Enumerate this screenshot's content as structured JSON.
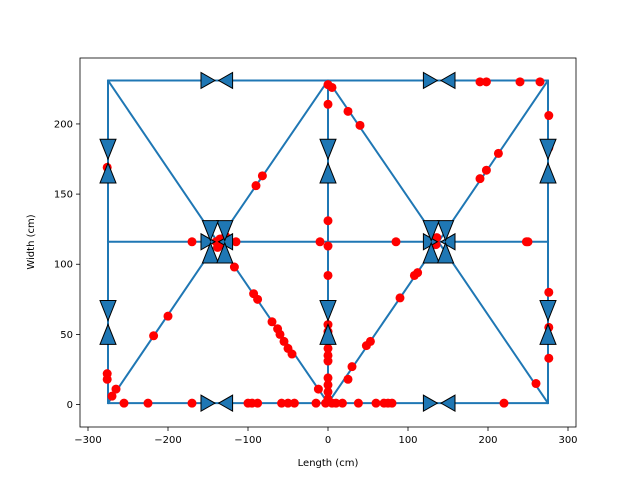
{
  "chart_data": {
    "type": "scatter",
    "title": "",
    "xlabel": "Length (cm)",
    "ylabel": "Width (cm)",
    "xlim": [
      -310,
      310
    ],
    "ylim": [
      -16,
      247
    ],
    "xticks": [
      -300,
      -200,
      -100,
      0,
      100,
      200,
      300
    ],
    "yticks": [
      0,
      50,
      100,
      150,
      200
    ],
    "grid": false,
    "legend": "none",
    "colors": {
      "line": "#1f77b4",
      "points": "#ff0000",
      "arrow_fill": "#1f77b4",
      "arrow_edge": "#000000"
    },
    "line_segments": [
      [
        [
          -275,
          1
        ],
        [
          -275,
          231
        ]
      ],
      [
        [
          -275,
          231
        ],
        [
          275,
          231
        ]
      ],
      [
        [
          275,
          231
        ],
        [
          275,
          1
        ]
      ],
      [
        [
          275,
          1
        ],
        [
          -275,
          1
        ]
      ],
      [
        [
          -275,
          116
        ],
        [
          275,
          116
        ]
      ],
      [
        [
          0,
          1
        ],
        [
          0,
          231
        ]
      ],
      [
        [
          -275,
          231
        ],
        [
          -138,
          116
        ]
      ],
      [
        [
          -138,
          116
        ],
        [
          0,
          1
        ]
      ],
      [
        [
          0,
          231
        ],
        [
          -138,
          116
        ]
      ],
      [
        [
          -138,
          116
        ],
        [
          -275,
          1
        ]
      ],
      [
        [
          0,
          231
        ],
        [
          138,
          116
        ]
      ],
      [
        [
          138,
          116
        ],
        [
          275,
          1
        ]
      ],
      [
        [
          275,
          231
        ],
        [
          138,
          116
        ]
      ],
      [
        [
          138,
          116
        ],
        [
          0,
          1
        ]
      ]
    ],
    "arrows": [
      {
        "x": -150,
        "y": 231,
        "dir": "right"
      },
      {
        "x": -128,
        "y": 231,
        "dir": "left"
      },
      {
        "x": 128,
        "y": 231,
        "dir": "right"
      },
      {
        "x": 150,
        "y": 231,
        "dir": "left"
      },
      {
        "x": -150,
        "y": 1,
        "dir": "right"
      },
      {
        "x": -128,
        "y": 1,
        "dir": "left"
      },
      {
        "x": 128,
        "y": 1,
        "dir": "right"
      },
      {
        "x": 150,
        "y": 1,
        "dir": "left"
      },
      {
        "x": -275,
        "y": 182,
        "dir": "down"
      },
      {
        "x": -275,
        "y": 165,
        "dir": "up"
      },
      {
        "x": -275,
        "y": 67,
        "dir": "down"
      },
      {
        "x": -275,
        "y": 50,
        "dir": "up"
      },
      {
        "x": 0,
        "y": 182,
        "dir": "down"
      },
      {
        "x": 0,
        "y": 165,
        "dir": "up"
      },
      {
        "x": 0,
        "y": 67,
        "dir": "down"
      },
      {
        "x": 0,
        "y": 50,
        "dir": "up"
      },
      {
        "x": 275,
        "y": 182,
        "dir": "down"
      },
      {
        "x": 275,
        "y": 165,
        "dir": "up"
      },
      {
        "x": 275,
        "y": 67,
        "dir": "down"
      },
      {
        "x": 275,
        "y": 50,
        "dir": "up"
      },
      {
        "x": -150,
        "y": 116,
        "dir": "right"
      },
      {
        "x": -128,
        "y": 116,
        "dir": "left"
      },
      {
        "x": 128,
        "y": 116,
        "dir": "right"
      },
      {
        "x": 150,
        "y": 116,
        "dir": "left"
      },
      {
        "x": -147,
        "y": 108,
        "dir": "up"
      },
      {
        "x": -129,
        "y": 124,
        "dir": "down"
      },
      {
        "x": -147,
        "y": 124,
        "dir": "down"
      },
      {
        "x": -129,
        "y": 108,
        "dir": "up"
      },
      {
        "x": 129,
        "y": 108,
        "dir": "up"
      },
      {
        "x": 147,
        "y": 124,
        "dir": "down"
      },
      {
        "x": 129,
        "y": 124,
        "dir": "down"
      },
      {
        "x": 147,
        "y": 108,
        "dir": "up"
      }
    ],
    "points": [
      [
        -276,
        169
      ],
      [
        -276,
        22
      ],
      [
        -276,
        18
      ],
      [
        -270,
        6
      ],
      [
        -265,
        11
      ],
      [
        -255,
        1
      ],
      [
        -225,
        1
      ],
      [
        -170,
        1
      ],
      [
        -218,
        49
      ],
      [
        -200,
        63
      ],
      [
        -170,
        116
      ],
      [
        -140,
        116
      ],
      [
        -135,
        118
      ],
      [
        -132,
        114
      ],
      [
        -138,
        112
      ],
      [
        -128,
        120
      ],
      [
        -115,
        116
      ],
      [
        -117,
        98
      ],
      [
        -90,
        156
      ],
      [
        -82,
        163
      ],
      [
        -93,
        79
      ],
      [
        -88,
        75
      ],
      [
        -70,
        59
      ],
      [
        -63,
        54
      ],
      [
        -60,
        50
      ],
      [
        -55,
        45
      ],
      [
        -50,
        40
      ],
      [
        -45,
        36
      ],
      [
        -100,
        1
      ],
      [
        -95,
        1
      ],
      [
        -88,
        1
      ],
      [
        -58,
        1
      ],
      [
        -50,
        1
      ],
      [
        -42,
        1
      ],
      [
        -15,
        1
      ],
      [
        -12,
        11
      ],
      [
        -10,
        116
      ],
      [
        0,
        228
      ],
      [
        5,
        226
      ],
      [
        0,
        214
      ],
      [
        0,
        131
      ],
      [
        0,
        113
      ],
      [
        0,
        92
      ],
      [
        0,
        57
      ],
      [
        0,
        52
      ],
      [
        0,
        46
      ],
      [
        0,
        40
      ],
      [
        0,
        35
      ],
      [
        0,
        31
      ],
      [
        0,
        19
      ],
      [
        0,
        14
      ],
      [
        0,
        9
      ],
      [
        0,
        4
      ],
      [
        -3,
        1
      ],
      [
        5,
        1
      ],
      [
        10,
        1
      ],
      [
        18,
        1
      ],
      [
        25,
        18
      ],
      [
        30,
        27
      ],
      [
        48,
        42
      ],
      [
        53,
        45
      ],
      [
        38,
        1
      ],
      [
        60,
        1
      ],
      [
        70,
        1
      ],
      [
        75,
        1
      ],
      [
        80,
        1
      ],
      [
        25,
        209
      ],
      [
        40,
        199
      ],
      [
        85,
        116
      ],
      [
        90,
        76
      ],
      [
        108,
        92
      ],
      [
        112,
        94
      ],
      [
        136,
        119
      ],
      [
        135,
        114
      ],
      [
        190,
        230
      ],
      [
        198,
        230
      ],
      [
        240,
        230
      ],
      [
        265,
        230
      ],
      [
        190,
        161
      ],
      [
        198,
        167
      ],
      [
        213,
        179
      ],
      [
        248,
        116
      ],
      [
        250,
        116
      ],
      [
        220,
        1
      ],
      [
        260,
        15
      ],
      [
        276,
        206
      ],
      [
        276,
        183
      ],
      [
        276,
        80
      ],
      [
        276,
        55
      ],
      [
        276,
        33
      ]
    ]
  },
  "axes": {
    "xlabel": "Length (cm)",
    "ylabel": "Width (cm)"
  }
}
